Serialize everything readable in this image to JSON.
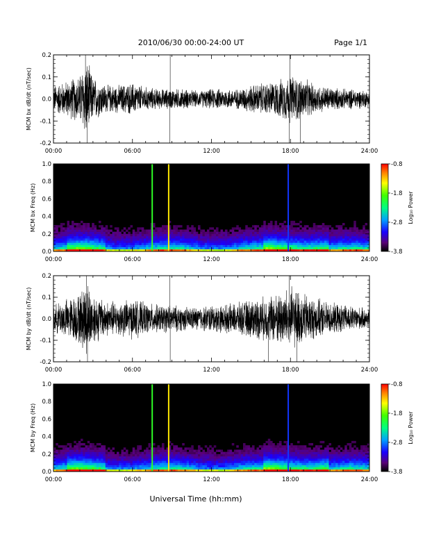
{
  "header": {
    "title": "2010/06/30  00:00-24:00 UT",
    "page": "Page 1/1"
  },
  "footer": {
    "xlabel": "Universal Time (hh:mm)"
  },
  "chart_data": [
    {
      "type": "line",
      "ylabel": "MCM bx dB/dt (nT/sec)",
      "xlim": [
        "00:00",
        "24:00"
      ],
      "ylim": [
        -0.2,
        0.2
      ],
      "x_ticks": [
        "00:00",
        "06:00",
        "12:00",
        "18:00",
        "24:00"
      ],
      "y_ticks": [
        "-0.2",
        "-0.1",
        "0.0",
        "0.1",
        "0.2"
      ],
      "envelope_hours": [
        0,
        1,
        2,
        2.5,
        3,
        4,
        5,
        6,
        7,
        8,
        9,
        10,
        11,
        12,
        13,
        14,
        15,
        16,
        17,
        18,
        19,
        20,
        21,
        22,
        23,
        24
      ],
      "envelope_amplitude": [
        0.07,
        0.09,
        0.12,
        0.2,
        0.11,
        0.07,
        0.07,
        0.08,
        0.06,
        0.05,
        0.05,
        0.05,
        0.04,
        0.05,
        0.05,
        0.05,
        0.07,
        0.08,
        0.09,
        0.12,
        0.1,
        0.07,
        0.06,
        0.05,
        0.05,
        0.04
      ],
      "spikes": [
        {
          "time": "02:26",
          "value": 0.2
        },
        {
          "time": "02:33",
          "value": -0.2
        },
        {
          "time": "08:50",
          "value": -0.2
        },
        {
          "time": "08:52",
          "value": 0.2
        },
        {
          "time": "17:55",
          "value": -0.2
        },
        {
          "time": "17:57",
          "value": 0.2
        },
        {
          "time": "18:45",
          "value": -0.2
        }
      ]
    },
    {
      "type": "heatmap",
      "ylabel": "MCM bx Freq (Hz)",
      "xlim": [
        "00:00",
        "24:00"
      ],
      "ylim": [
        0.0,
        1.0
      ],
      "x_ticks": [
        "00:00",
        "06:00",
        "12:00",
        "18:00",
        "24:00"
      ],
      "y_ticks": [
        "0.0",
        "0.2",
        "0.4",
        "0.6",
        "0.8",
        "1.0"
      ],
      "colorbar": {
        "label": "Log₁₀ Power",
        "ticks": [
          "-0.8",
          "-1.8",
          "-2.8",
          "-3.8"
        ],
        "range": [
          -3.8,
          -0.8
        ]
      },
      "vertical_lines": [
        {
          "time": "07:30",
          "log_power": -2.0
        },
        {
          "time": "08:45",
          "log_power": -1.4
        },
        {
          "time": "17:50",
          "log_power": -3.0
        }
      ]
    },
    {
      "type": "line",
      "ylabel": "MCM by dB/dt (nT/sec)",
      "xlim": [
        "00:00",
        "24:00"
      ],
      "ylim": [
        -0.2,
        0.2
      ],
      "x_ticks": [
        "00:00",
        "06:00",
        "12:00",
        "18:00",
        "24:00"
      ],
      "y_ticks": [
        "-0.2",
        "-0.1",
        "0.0",
        "0.1",
        "0.2"
      ],
      "envelope_hours": [
        0,
        1,
        2,
        2.5,
        3,
        4,
        5,
        6,
        7,
        8,
        9,
        10,
        11,
        12,
        13,
        14,
        15,
        16,
        17,
        18,
        19,
        20,
        21,
        22,
        23,
        24
      ],
      "envelope_amplitude": [
        0.07,
        0.1,
        0.13,
        0.2,
        0.13,
        0.09,
        0.09,
        0.1,
        0.08,
        0.07,
        0.07,
        0.06,
        0.06,
        0.07,
        0.07,
        0.08,
        0.1,
        0.11,
        0.13,
        0.16,
        0.13,
        0.1,
        0.08,
        0.07,
        0.06,
        0.05
      ],
      "spikes": [
        {
          "time": "02:30",
          "value": 0.2
        },
        {
          "time": "02:35",
          "value": -0.2
        },
        {
          "time": "08:50",
          "value": 0.2
        },
        {
          "time": "08:52",
          "value": -0.2
        },
        {
          "time": "16:20",
          "value": -0.2
        },
        {
          "time": "17:55",
          "value": 0.2
        },
        {
          "time": "18:30",
          "value": -0.2
        }
      ]
    },
    {
      "type": "heatmap",
      "ylabel": "MCM by Freq (Hz)",
      "xlim": [
        "00:00",
        "24:00"
      ],
      "ylim": [
        0.0,
        1.0
      ],
      "x_ticks": [
        "00:00",
        "06:00",
        "12:00",
        "18:00",
        "24:00"
      ],
      "y_ticks": [
        "0.0",
        "0.2",
        "0.4",
        "0.6",
        "0.8",
        "1.0"
      ],
      "colorbar": {
        "label": "Log₁₀ Power",
        "ticks": [
          "-0.8",
          "-1.8",
          "-2.8",
          "-3.8"
        ],
        "range": [
          -3.8,
          -0.8
        ]
      },
      "vertical_lines": [
        {
          "time": "07:30",
          "log_power": -2.0
        },
        {
          "time": "08:45",
          "log_power": -1.4
        },
        {
          "time": "17:50",
          "log_power": -3.0
        }
      ]
    }
  ]
}
